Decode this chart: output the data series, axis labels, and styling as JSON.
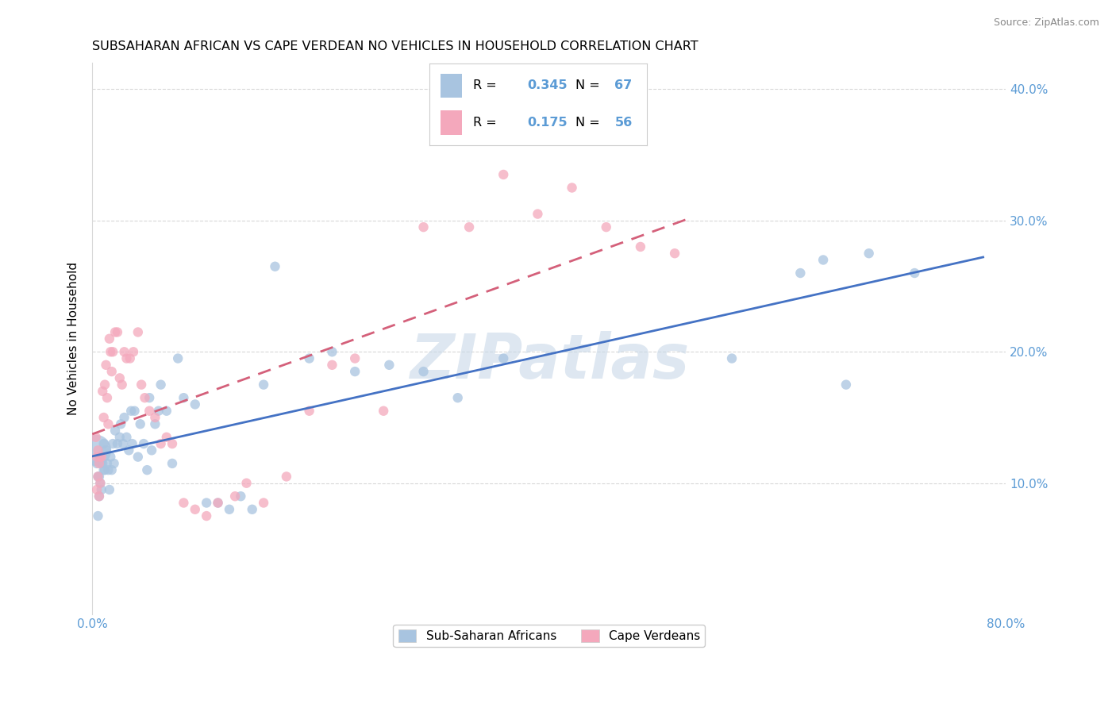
{
  "title": "SUBSAHARAN AFRICAN VS CAPE VERDEAN NO VEHICLES IN HOUSEHOLD CORRELATION CHART",
  "source": "Source: ZipAtlas.com",
  "ylabel": "No Vehicles in Household",
  "xlim": [
    0.0,
    0.8
  ],
  "ylim": [
    0.0,
    0.42
  ],
  "blue_color": "#a8c4e0",
  "pink_color": "#f4a8bc",
  "blue_line_color": "#4472c4",
  "pink_line_color": "#d4607a",
  "R_blue": 0.345,
  "N_blue": 67,
  "R_pink": 0.175,
  "N_pink": 56,
  "watermark": "ZIPatlas",
  "grid_color": "#d8d8d8",
  "background_color": "#ffffff",
  "tick_label_color": "#5b9bd5",
  "blue_scatter_x": [
    0.003,
    0.004,
    0.005,
    0.005,
    0.006,
    0.006,
    0.007,
    0.007,
    0.008,
    0.008,
    0.009,
    0.01,
    0.01,
    0.011,
    0.012,
    0.013,
    0.014,
    0.015,
    0.016,
    0.017,
    0.018,
    0.019,
    0.02,
    0.022,
    0.024,
    0.025,
    0.027,
    0.028,
    0.03,
    0.032,
    0.034,
    0.035,
    0.037,
    0.04,
    0.042,
    0.045,
    0.048,
    0.05,
    0.052,
    0.055,
    0.058,
    0.06,
    0.065,
    0.07,
    0.075,
    0.08,
    0.09,
    0.1,
    0.11,
    0.12,
    0.13,
    0.14,
    0.15,
    0.16,
    0.19,
    0.21,
    0.23,
    0.26,
    0.29,
    0.32,
    0.36,
    0.56,
    0.62,
    0.64,
    0.66,
    0.68,
    0.72
  ],
  "blue_scatter_y": [
    0.125,
    0.115,
    0.105,
    0.075,
    0.105,
    0.09,
    0.12,
    0.1,
    0.115,
    0.095,
    0.115,
    0.13,
    0.11,
    0.11,
    0.125,
    0.115,
    0.11,
    0.095,
    0.12,
    0.11,
    0.13,
    0.115,
    0.14,
    0.13,
    0.135,
    0.145,
    0.13,
    0.15,
    0.135,
    0.125,
    0.155,
    0.13,
    0.155,
    0.12,
    0.145,
    0.13,
    0.11,
    0.165,
    0.125,
    0.145,
    0.155,
    0.175,
    0.155,
    0.115,
    0.195,
    0.165,
    0.16,
    0.085,
    0.085,
    0.08,
    0.09,
    0.08,
    0.175,
    0.265,
    0.195,
    0.2,
    0.185,
    0.19,
    0.185,
    0.165,
    0.195,
    0.195,
    0.26,
    0.27,
    0.175,
    0.275,
    0.26
  ],
  "blue_scatter_sizes": [
    800,
    80,
    80,
    80,
    80,
    80,
    80,
    80,
    80,
    80,
    80,
    80,
    80,
    80,
    80,
    80,
    80,
    80,
    80,
    80,
    80,
    80,
    80,
    80,
    80,
    80,
    80,
    80,
    80,
    80,
    80,
    80,
    80,
    80,
    80,
    80,
    80,
    80,
    80,
    80,
    80,
    80,
    80,
    80,
    80,
    80,
    80,
    80,
    80,
    80,
    80,
    80,
    80,
    80,
    80,
    80,
    80,
    80,
    80,
    80,
    80,
    80,
    80,
    80,
    80,
    80,
    80
  ],
  "pink_scatter_x": [
    0.003,
    0.004,
    0.004,
    0.005,
    0.005,
    0.006,
    0.006,
    0.007,
    0.007,
    0.008,
    0.009,
    0.01,
    0.011,
    0.012,
    0.013,
    0.014,
    0.015,
    0.016,
    0.017,
    0.018,
    0.02,
    0.022,
    0.024,
    0.026,
    0.028,
    0.03,
    0.033,
    0.036,
    0.04,
    0.043,
    0.046,
    0.05,
    0.055,
    0.06,
    0.065,
    0.07,
    0.08,
    0.09,
    0.1,
    0.11,
    0.125,
    0.135,
    0.15,
    0.17,
    0.19,
    0.21,
    0.23,
    0.255,
    0.29,
    0.33,
    0.36,
    0.39,
    0.42,
    0.45,
    0.48,
    0.51
  ],
  "pink_scatter_y": [
    0.135,
    0.12,
    0.095,
    0.125,
    0.105,
    0.115,
    0.09,
    0.12,
    0.1,
    0.12,
    0.17,
    0.15,
    0.175,
    0.19,
    0.165,
    0.145,
    0.21,
    0.2,
    0.185,
    0.2,
    0.215,
    0.215,
    0.18,
    0.175,
    0.2,
    0.195,
    0.195,
    0.2,
    0.215,
    0.175,
    0.165,
    0.155,
    0.15,
    0.13,
    0.135,
    0.13,
    0.085,
    0.08,
    0.075,
    0.085,
    0.09,
    0.1,
    0.085,
    0.105,
    0.155,
    0.19,
    0.195,
    0.155,
    0.295,
    0.295,
    0.335,
    0.305,
    0.325,
    0.295,
    0.28,
    0.275
  ],
  "pink_scatter_sizes": [
    80,
    80,
    80,
    80,
    80,
    80,
    80,
    80,
    80,
    80,
    80,
    80,
    80,
    80,
    80,
    80,
    80,
    80,
    80,
    80,
    80,
    80,
    80,
    80,
    80,
    80,
    80,
    80,
    80,
    80,
    80,
    80,
    80,
    80,
    80,
    80,
    80,
    80,
    80,
    80,
    80,
    80,
    80,
    80,
    80,
    80,
    80,
    80,
    80,
    80,
    80,
    80,
    80,
    80,
    80,
    80
  ]
}
